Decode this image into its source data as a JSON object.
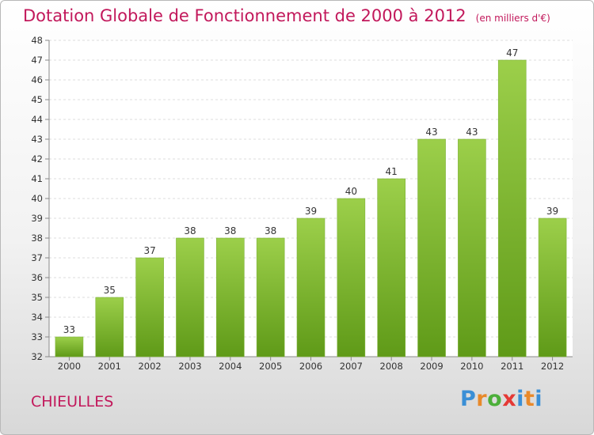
{
  "title": "Dotation Globale de Fonctionnement de 2000 à 2012",
  "unit_note": "(en milliers d'€)",
  "city": "CHIEULLES",
  "logo": {
    "text": "Proxiti",
    "letters": [
      "P",
      "r",
      "o",
      "x",
      "i",
      "t",
      "i"
    ]
  },
  "colors": {
    "title": "#c2185b",
    "bar_top": "#9ccf4a",
    "bar_bottom": "#5f9a18"
  },
  "chart_data": {
    "type": "bar",
    "categories": [
      "2000",
      "2001",
      "2002",
      "2003",
      "2004",
      "2005",
      "2006",
      "2007",
      "2008",
      "2009",
      "2010",
      "2011",
      "2012"
    ],
    "values": [
      33,
      35,
      37,
      38,
      38,
      38,
      39,
      40,
      41,
      43,
      43,
      47,
      39
    ],
    "title": "Dotation Globale de Fonctionnement de 2000 à 2012",
    "xlabel": "",
    "ylabel": "",
    "ylim": [
      32,
      48
    ],
    "yticks": [
      32,
      33,
      34,
      35,
      36,
      37,
      38,
      39,
      40,
      41,
      42,
      43,
      44,
      45,
      46,
      47,
      48
    ],
    "grid": true
  }
}
